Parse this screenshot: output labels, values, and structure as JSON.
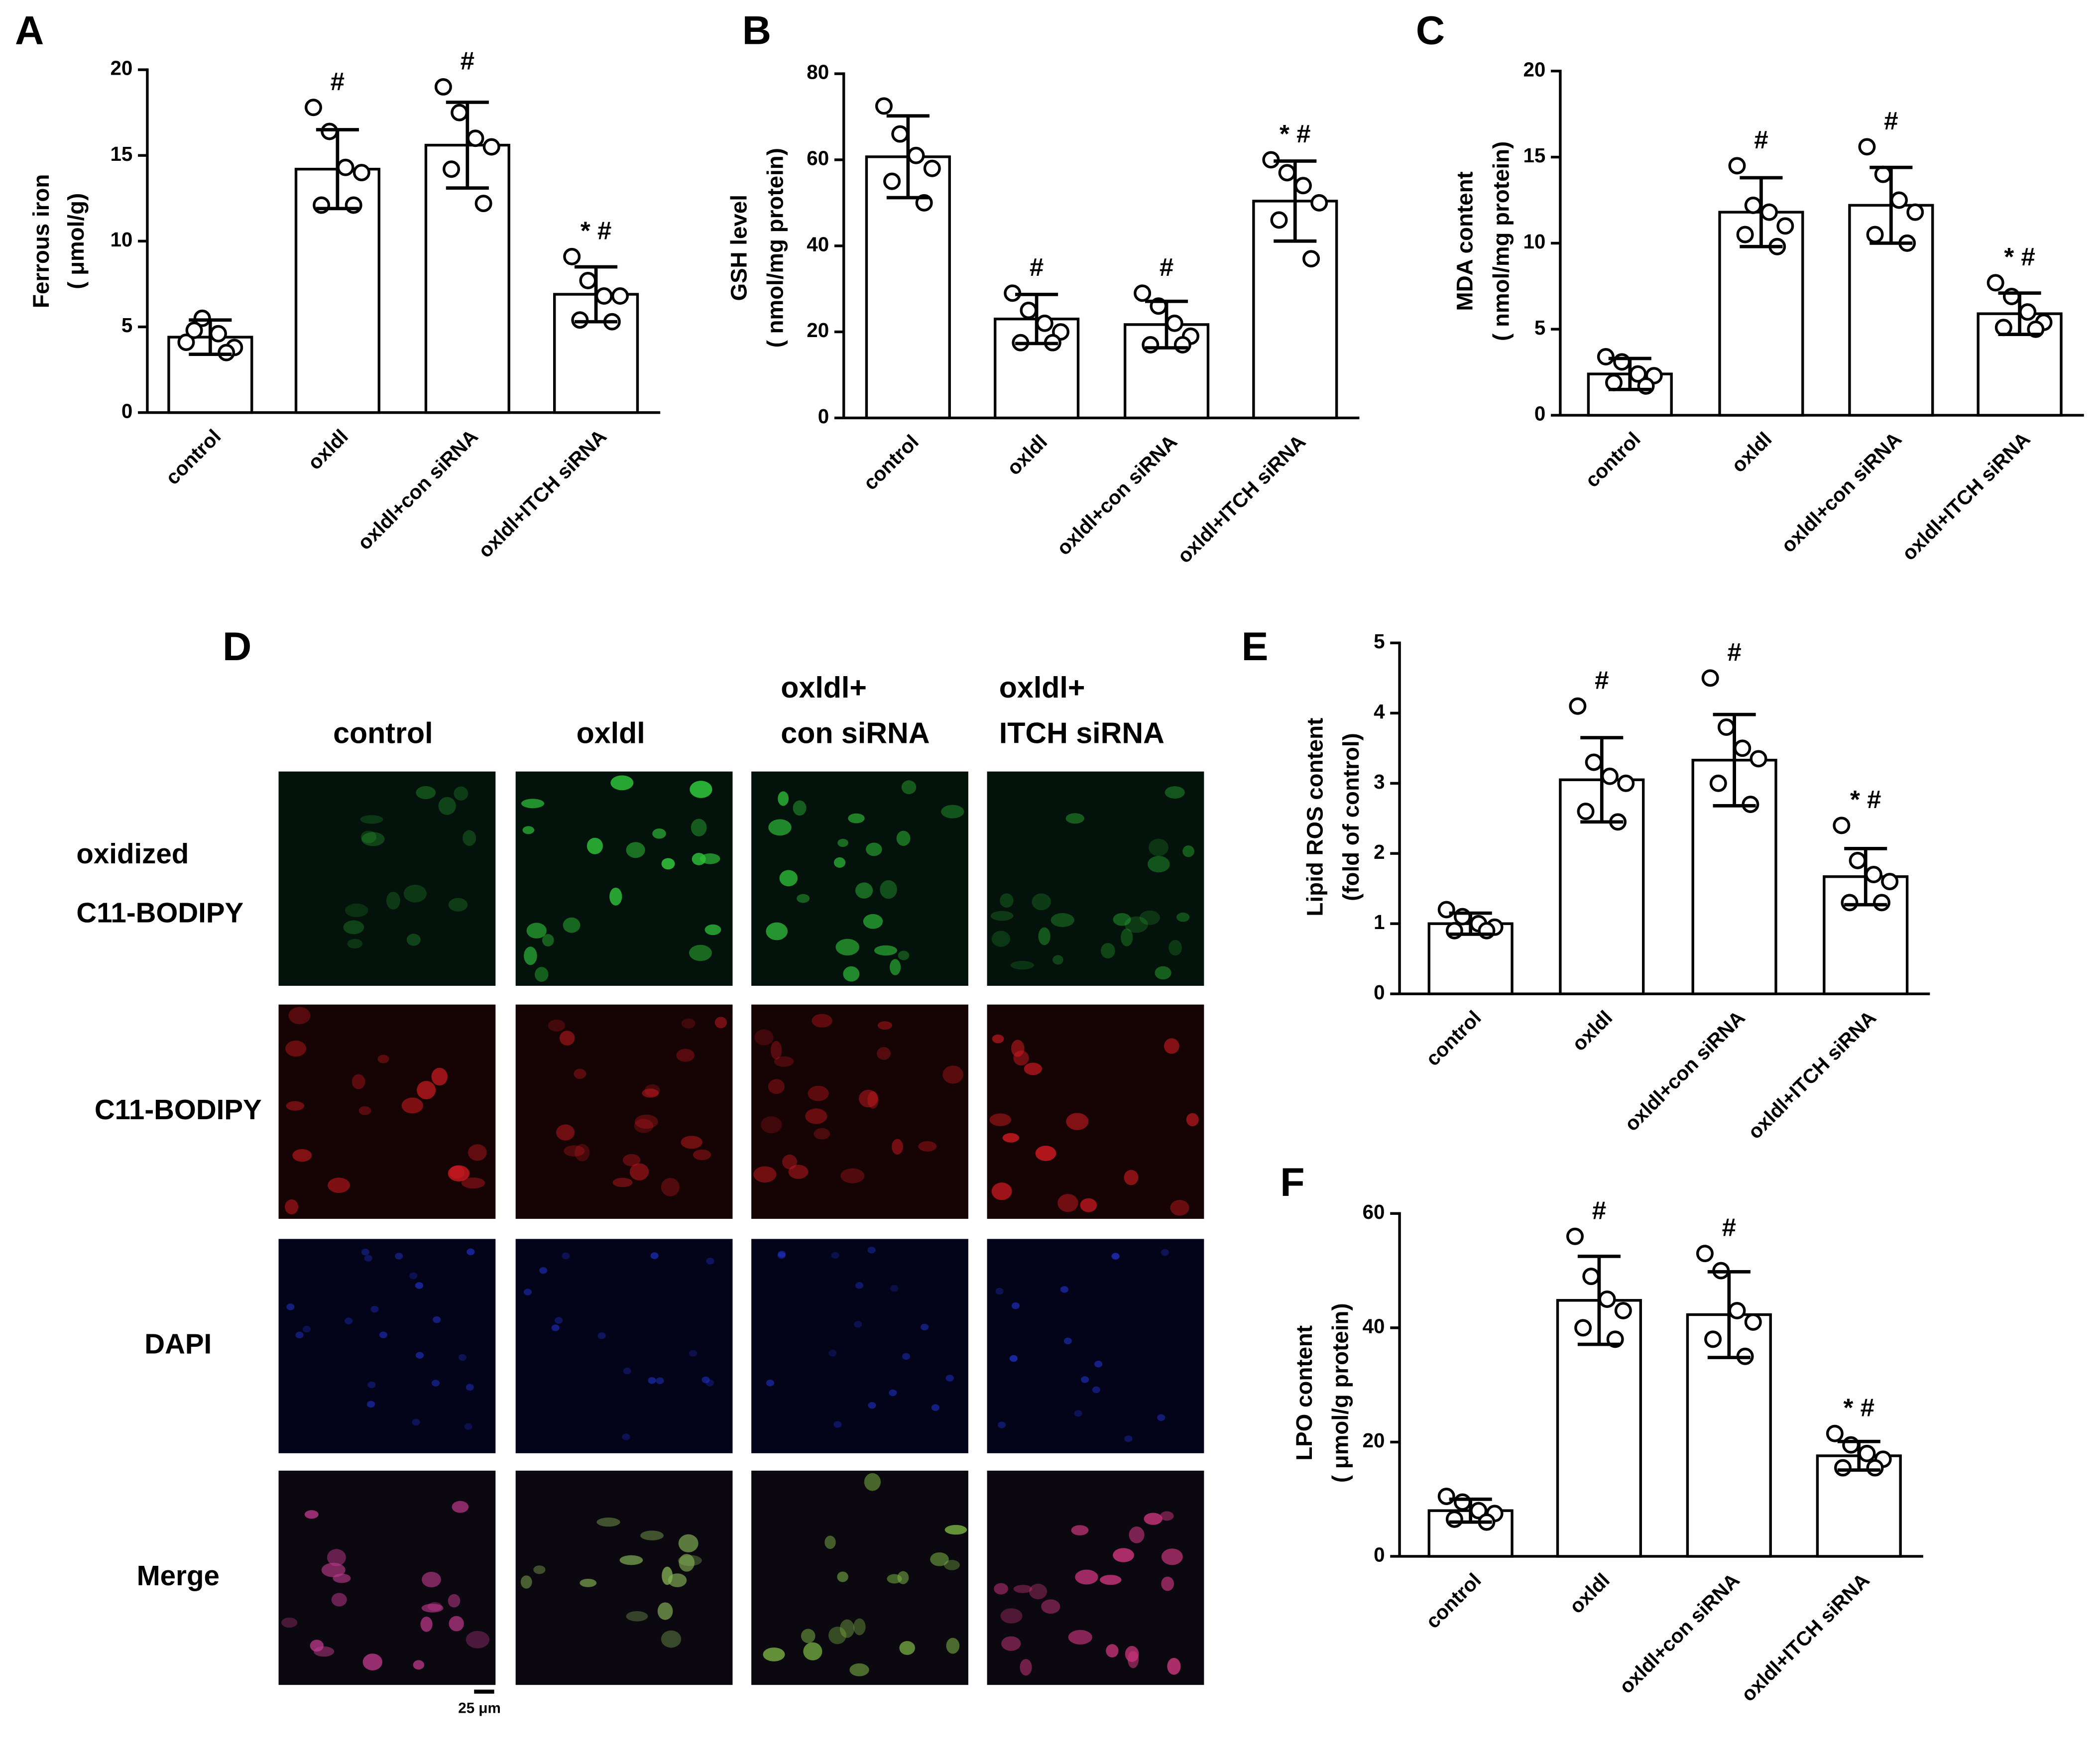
{
  "chart_data": [
    {
      "type": "bar",
      "panel": "A",
      "ylabel": [
        "Ferrous iron",
        "( μmol/g)"
      ],
      "categories": [
        "control",
        "oxldl",
        "oxldl+con siRNA",
        "oxldl+ITCH siRNA"
      ],
      "values": [
        4.4,
        14.2,
        15.6,
        6.9
      ],
      "errors": [
        1.0,
        2.3,
        2.5,
        1.6
      ],
      "points": [
        [
          4.1,
          5.5,
          4.6,
          3.8,
          4.8,
          3.5
        ],
        [
          17.8,
          16.4,
          14.3,
          14.0,
          12.1,
          12.1
        ],
        [
          19.0,
          17.5,
          16.0,
          15.5,
          14.2,
          12.2
        ],
        [
          9.1,
          7.7,
          6.8,
          6.8,
          5.4,
          5.3
        ]
      ],
      "annotations": [
        null,
        "#",
        "#",
        "* #"
      ],
      "color": "#ffffff",
      "ylim": [
        0,
        20
      ],
      "yticks": [
        0,
        5,
        10,
        15,
        20
      ]
    },
    {
      "type": "bar",
      "panel": "B",
      "ylabel": [
        "GSH level",
        "( nmol/mg protein)"
      ],
      "categories": [
        "control",
        "oxldl",
        "oxldl+con siRNA",
        "oxldl+ITCH siRNA"
      ],
      "values": [
        60.7,
        23.0,
        21.7,
        50.4
      ],
      "errors": [
        9.5,
        5.7,
        5.4,
        9.3
      ],
      "points": [
        [
          72.5,
          66,
          61,
          58,
          55,
          50
        ],
        [
          29,
          25,
          22,
          20,
          17.5,
          17.5
        ],
        [
          29,
          26,
          22,
          19,
          17,
          17
        ],
        [
          60,
          57,
          54,
          50,
          46,
          37
        ]
      ],
      "annotations": [
        null,
        "#",
        "#",
        "* #"
      ],
      "color": "#ffffff",
      "ylim": [
        0,
        80
      ],
      "yticks": [
        0,
        20,
        40,
        60,
        80
      ]
    },
    {
      "type": "bar",
      "panel": "C",
      "ylabel": [
        "MDA content",
        "( nmol/mg protein)"
      ],
      "categories": [
        "control",
        "oxldl",
        "oxldl+con siRNA",
        "oxldl+ITCH siRNA"
      ],
      "values": [
        2.4,
        11.8,
        12.2,
        5.9
      ],
      "errors": [
        0.9,
        2.0,
        2.2,
        1.2
      ],
      "points": [
        [
          3.4,
          3.1,
          2.4,
          2.3,
          1.9,
          1.7
        ],
        [
          14.5,
          12.2,
          11.8,
          11.0,
          10.5,
          9.8
        ],
        [
          15.6,
          14.0,
          12.5,
          11.8,
          10.5,
          10.0
        ],
        [
          7.7,
          6.9,
          6.0,
          5.4,
          5.1,
          5.0
        ]
      ],
      "annotations": [
        null,
        "#",
        "#",
        "* #"
      ],
      "color": "#ffffff",
      "ylim": [
        0,
        20
      ],
      "yticks": [
        0,
        5,
        10,
        15,
        20
      ]
    },
    {
      "type": "bar",
      "panel": "E",
      "ylabel": [
        "Lipid ROS content",
        "(fold of control)"
      ],
      "categories": [
        "control",
        "oxldl",
        "oxldl+con siRNA",
        "oxldl+ITCH siRNA"
      ],
      "values": [
        1.0,
        3.05,
        3.33,
        1.67
      ],
      "errors": [
        0.15,
        0.6,
        0.65,
        0.4
      ],
      "points": [
        [
          1.2,
          1.1,
          1.0,
          0.95,
          0.9,
          0.9
        ],
        [
          4.1,
          3.3,
          3.1,
          3.0,
          2.6,
          2.45
        ],
        [
          4.5,
          3.8,
          3.5,
          3.35,
          3.0,
          2.7
        ],
        [
          2.4,
          1.9,
          1.7,
          1.6,
          1.3,
          1.3
        ]
      ],
      "annotations": [
        null,
        "#",
        "#",
        "* #"
      ],
      "color": "#ffffff",
      "ylim": [
        0,
        5
      ],
      "yticks": [
        0,
        1,
        2,
        3,
        4,
        5
      ]
    },
    {
      "type": "bar",
      "panel": "F",
      "ylabel": [
        "LPO content",
        "( μmol/g protein)"
      ],
      "categories": [
        "control",
        "oxldl",
        "oxldl+con siRNA",
        "oxldl+ITCH siRNA"
      ],
      "values": [
        8.0,
        44.8,
        42.3,
        17.6
      ],
      "errors": [
        2.0,
        7.7,
        7.5,
        2.5
      ],
      "points": [
        [
          10.5,
          9.5,
          8,
          7.5,
          6.5,
          6
        ],
        [
          56,
          49,
          45,
          43,
          40,
          38
        ],
        [
          53,
          50,
          43,
          41,
          38,
          35
        ],
        [
          21.5,
          19.5,
          18,
          17,
          15.5,
          15.5
        ]
      ],
      "annotations": [
        null,
        "#",
        "#",
        "* #"
      ],
      "color": "#ffffff",
      "ylim": [
        0,
        60
      ],
      "yticks": [
        0,
        20,
        40,
        60
      ]
    }
  ],
  "micrographs": {
    "panel": "D",
    "columns": [
      [
        "control"
      ],
      [
        "oxldl"
      ],
      [
        "oxldl+",
        "con siRNA"
      ],
      [
        "oxldl+",
        "ITCH siRNA"
      ]
    ],
    "rows": [
      [
        "oxidized",
        "C11-BODIPY"
      ],
      [
        "C11-BODIPY"
      ],
      [
        "DAPI"
      ],
      [
        "Merge"
      ]
    ],
    "scale_bar": "25 μm"
  }
}
